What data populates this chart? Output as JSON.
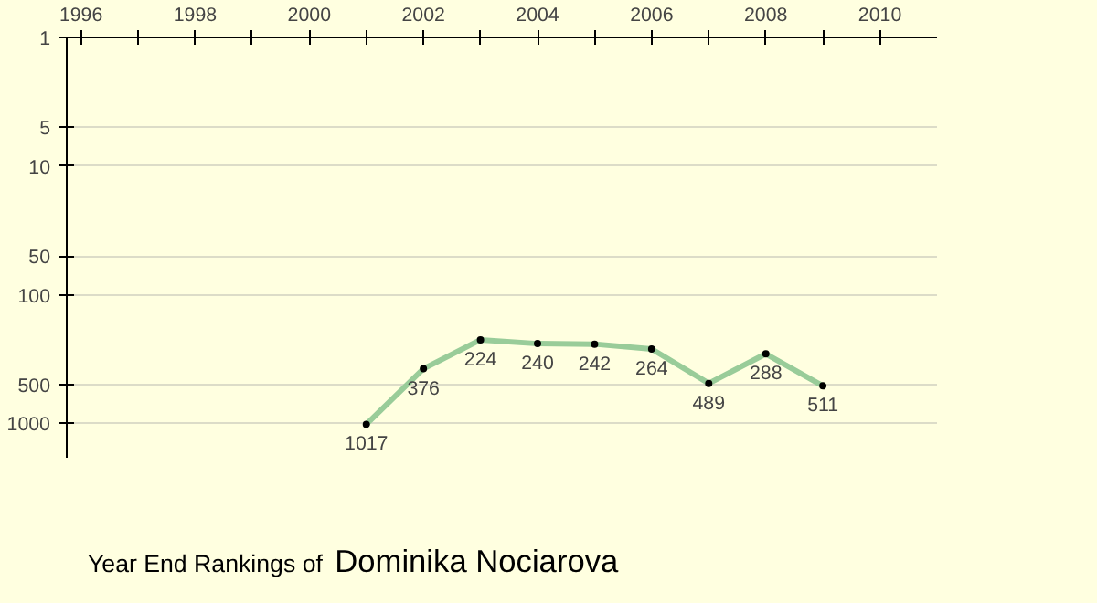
{
  "chart_data": {
    "type": "line",
    "title": "Year End Rankings of",
    "subtitle": "Dominika Nociarova",
    "x": [
      2001,
      2002,
      2003,
      2004,
      2005,
      2006,
      2007,
      2008,
      2009
    ],
    "series": [
      {
        "color": "#99cc99",
        "values": [
          1017,
          376,
          224,
          240,
          242,
          264,
          489,
          288,
          511
        ]
      }
    ],
    "data_labels": true,
    "marker": "circle",
    "line_style": "solid",
    "log": true,
    "grid": "y",
    "xlim": [
      1995.75,
      2011.0
    ],
    "xticks": [
      1996,
      {
        "value": 1997,
        "label": null
      },
      1998,
      {
        "value": 1999,
        "label": null
      },
      2000,
      {
        "value": 2001,
        "label": null
      },
      2002,
      {
        "value": 2003,
        "label": null
      },
      2004,
      {
        "value": 2005,
        "label": null
      },
      2006,
      {
        "value": 2007,
        "label": null
      },
      2008,
      {
        "value": 2009,
        "label": null
      },
      2010
    ],
    "ylim": [
      1850,
      1
    ],
    "yticks": [
      1,
      5,
      10,
      50,
      100,
      500,
      1000
    ]
  }
}
